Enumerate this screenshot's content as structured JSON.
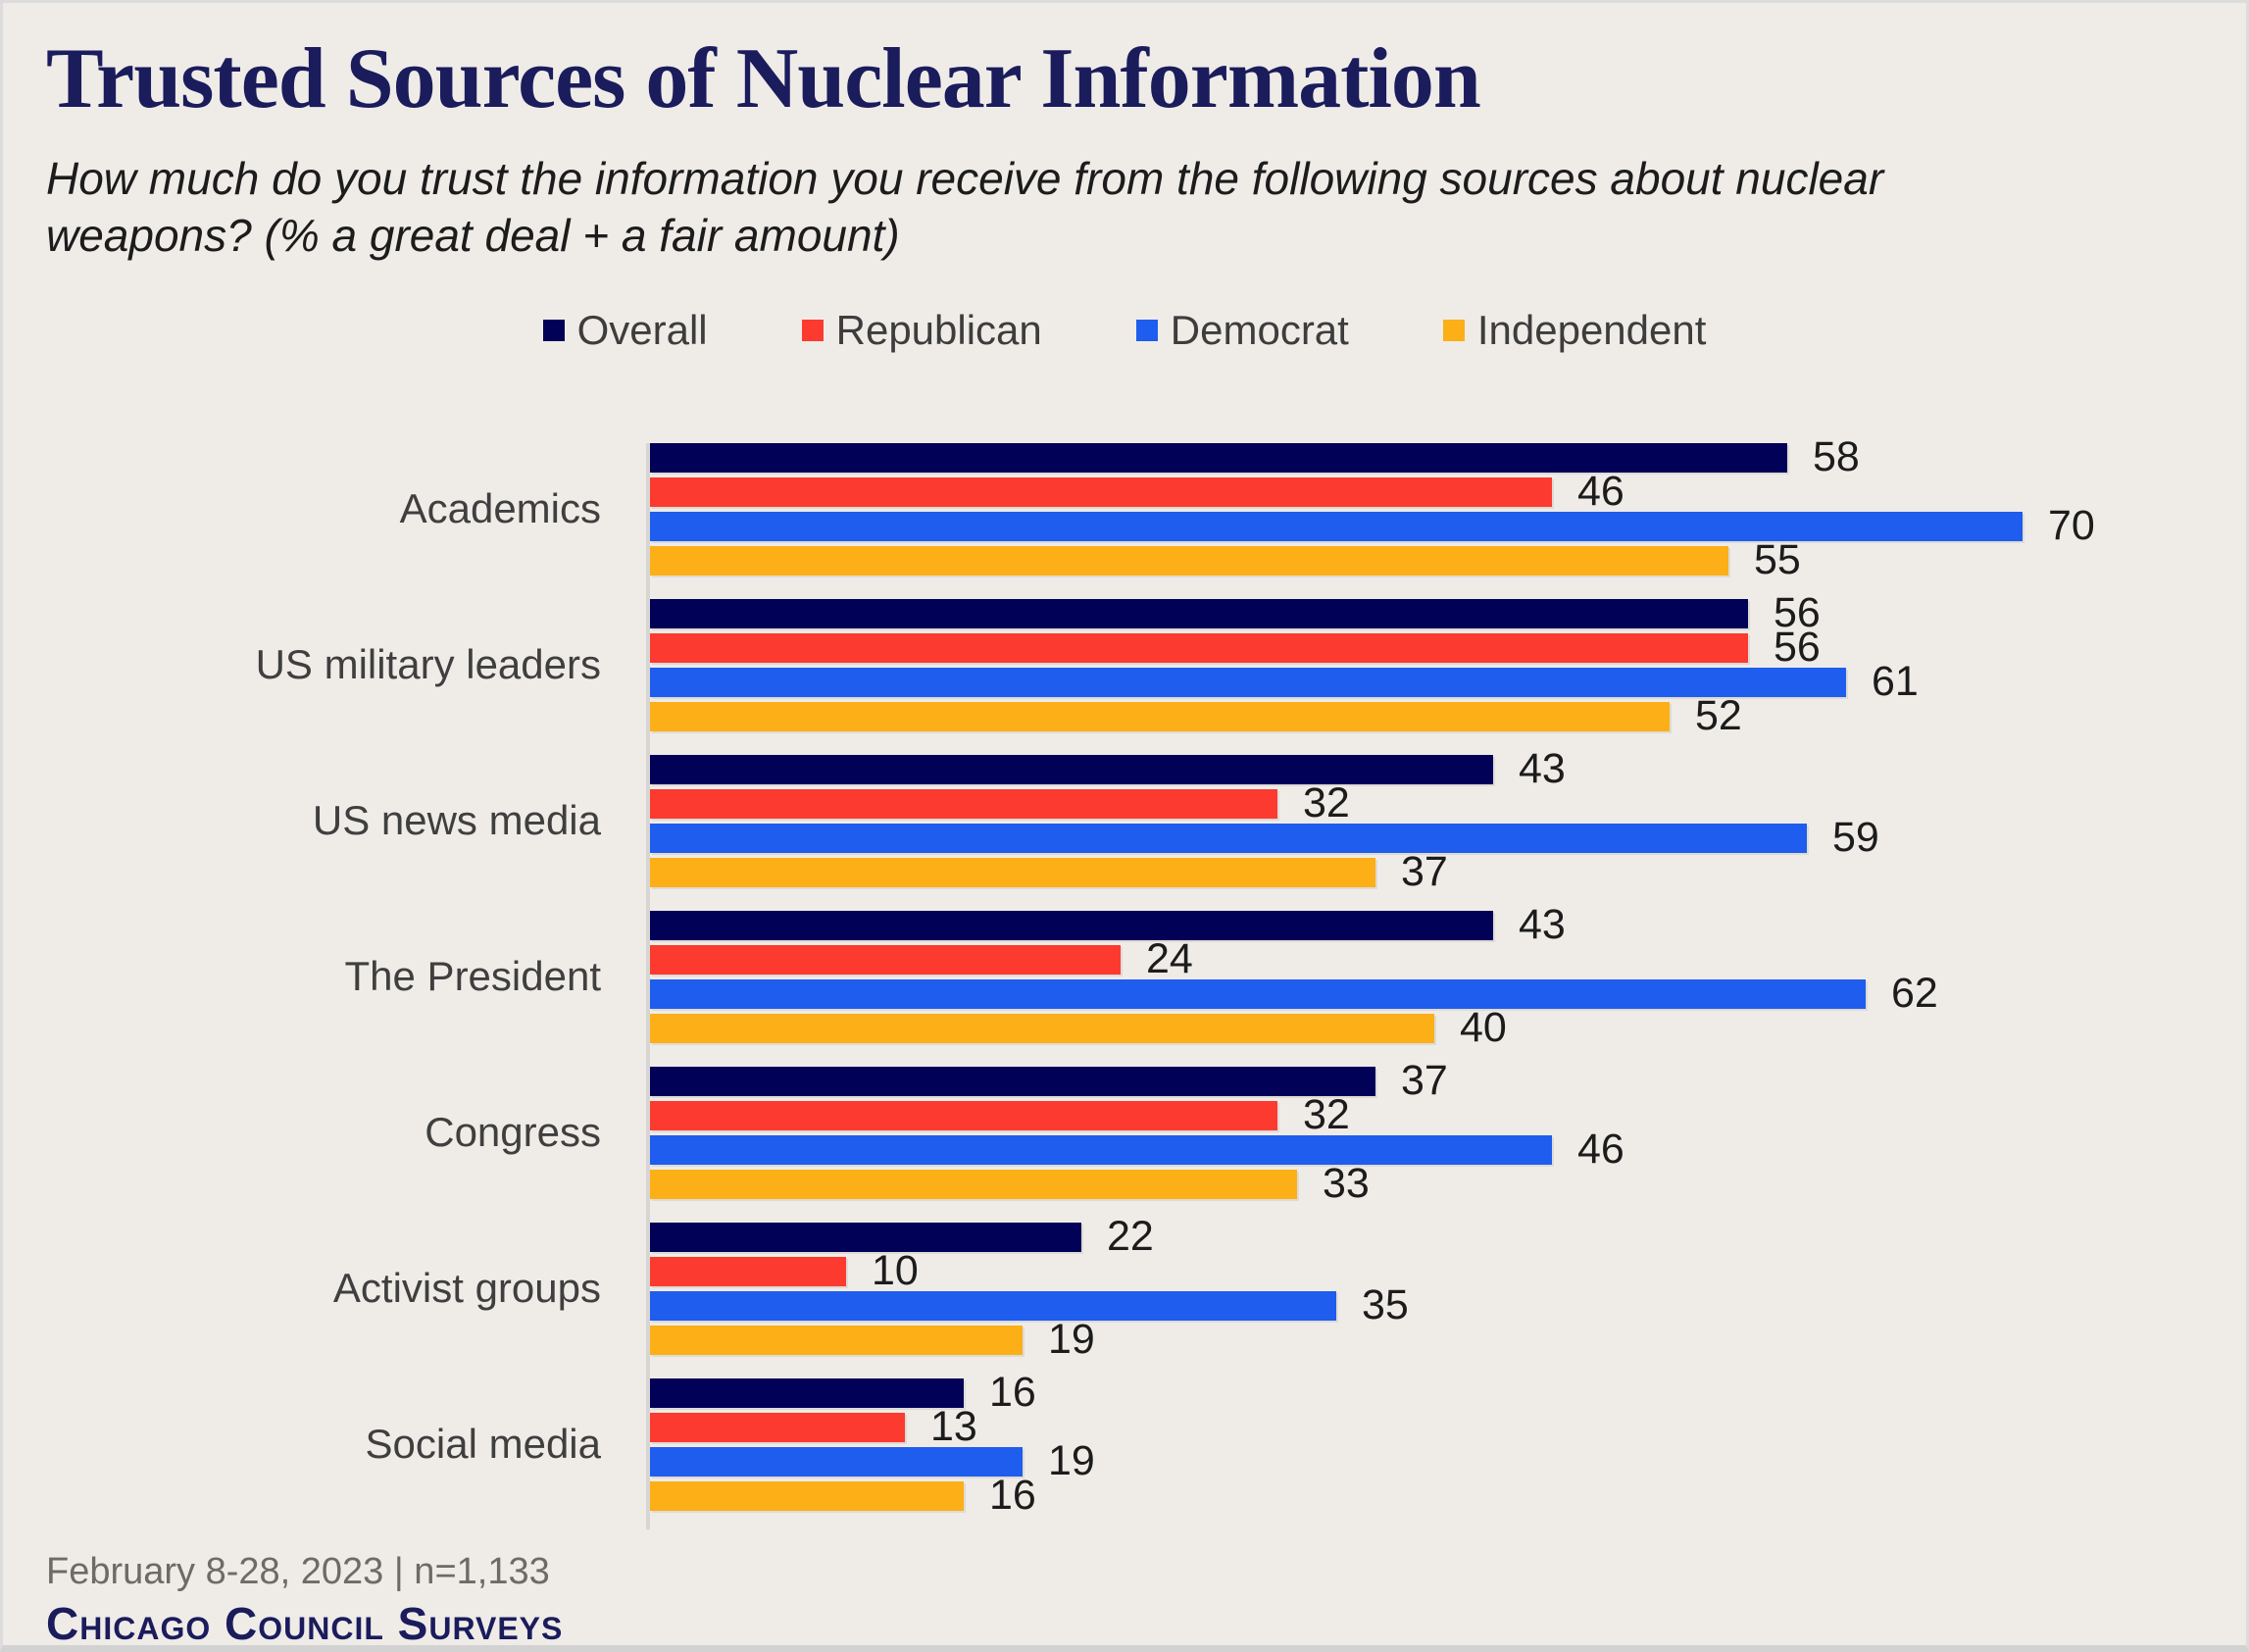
{
  "header": {
    "title": "Trusted Sources of Nuclear Information",
    "subtitle": "How much do you trust the information you receive from the following sources about nuclear weapons? (% a great deal + a fair amount)"
  },
  "chart_data": {
    "type": "bar",
    "orientation": "horizontal",
    "title": "Trusted Sources of Nuclear Information",
    "categories": [
      "Academics",
      "US military leaders",
      "US news media",
      "The President",
      "Congress",
      "Activist groups",
      "Social media"
    ],
    "series": [
      {
        "name": "Overall",
        "color": "#010257",
        "values": [
          58,
          56,
          43,
          43,
          37,
          22,
          16
        ]
      },
      {
        "name": "Republican",
        "color": "#fd3a30",
        "values": [
          46,
          56,
          32,
          24,
          32,
          10,
          13
        ]
      },
      {
        "name": "Democrat",
        "color": "#1e5ded",
        "values": [
          70,
          61,
          59,
          62,
          46,
          35,
          19
        ]
      },
      {
        "name": "Independent",
        "color": "#fcaf17",
        "values": [
          55,
          52,
          37,
          40,
          33,
          19,
          16
        ]
      }
    ],
    "xlim": [
      0,
      75
    ],
    "value_labels": true,
    "legend_position": "top",
    "grid": false,
    "background_color": "#efece8"
  },
  "footer": {
    "date_note": "February 8-28, 2023 | n=1,133",
    "brand": "Chicago Council Surveys"
  }
}
